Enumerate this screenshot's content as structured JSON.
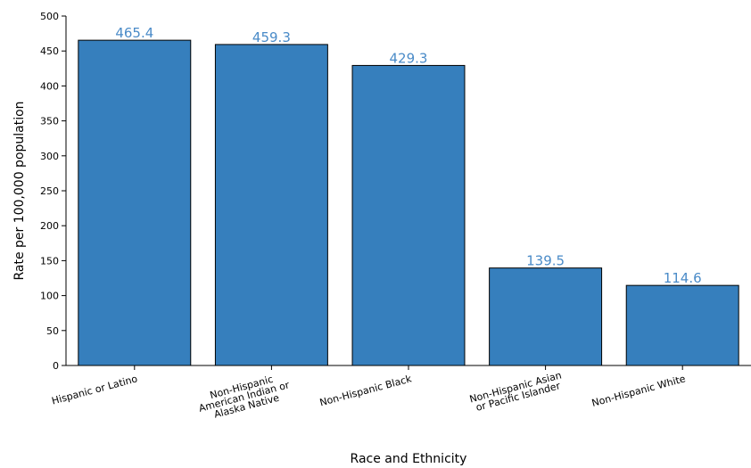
{
  "chart_data": {
    "type": "bar",
    "x_label": "Race and Ethnicity",
    "y_label": "Rate per 100,000 population",
    "categories": [
      [
        "Hispanic or Latino"
      ],
      [
        "Non-Hispanic",
        "American Indian or",
        "Alaska Native"
      ],
      [
        "Non-Hispanic Black"
      ],
      [
        "Non-Hispanic Asian",
        "or Pacific Islander"
      ],
      [
        "Non-Hispanic White"
      ]
    ],
    "values": [
      465.4,
      459.3,
      429.3,
      139.5,
      114.6
    ],
    "color": "#367fbd",
    "label_color": "#4a8bc8",
    "ylim": [
      0,
      500
    ],
    "yticks": [
      0,
      50,
      100,
      150,
      200,
      250,
      300,
      350,
      400,
      450,
      500
    ]
  }
}
